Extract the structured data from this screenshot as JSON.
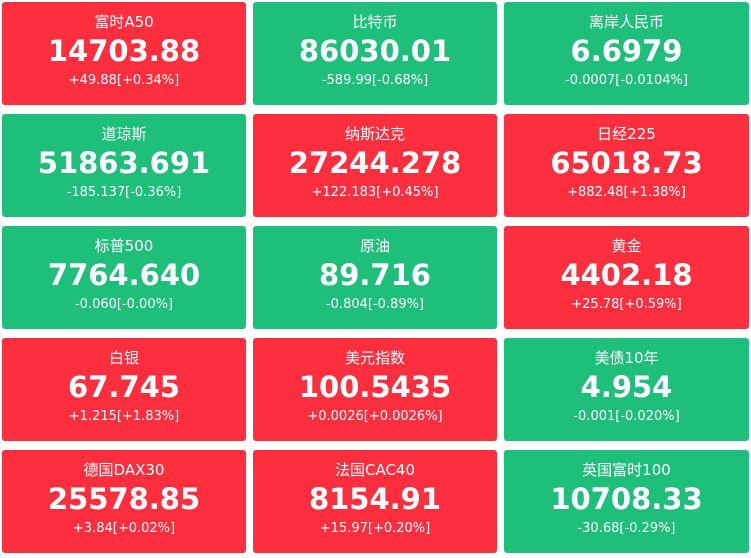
{
  "tiles": [
    {
      "name": "富时A50",
      "price": "14703.88",
      "change": "+49.88[+0.34%]",
      "color": "#fd2f3f"
    },
    {
      "name": "比特币",
      "price": "86030.01",
      "change": "-589.99[-0.68%]",
      "color": "#1ebf7b"
    },
    {
      "name": "离岸人民币",
      "price": "6.6979",
      "change": "-0.0007[-0.0104%]",
      "color": "#1ebf7b"
    },
    {
      "name": "道琼斯",
      "price": "51863.691",
      "change": "-185.137[-0.36%]",
      "color": "#1ebf7b"
    },
    {
      "name": "纳斯达克",
      "price": "27244.278",
      "change": "+122.183[+0.45%]",
      "color": "#fd2f3f"
    },
    {
      "name": "日经225",
      "price": "65018.73",
      "change": "+882.48[+1.38%]",
      "color": "#fd2f3f"
    },
    {
      "name": "标普500",
      "price": "7764.640",
      "change": "-0.060[-0.00%]",
      "color": "#1ebf7b"
    },
    {
      "name": "原油",
      "price": "89.716",
      "change": "-0.804[-0.89%]",
      "color": "#1ebf7b"
    },
    {
      "name": "黄金",
      "price": "4402.18",
      "change": "+25.78[+0.59%]",
      "color": "#fd2f3f"
    },
    {
      "name": "白银",
      "price": "67.745",
      "change": "+1.215[+1.83%]",
      "color": "#fd2f3f"
    },
    {
      "name": "美元指数",
      "price": "100.5435",
      "change": "+0.0026[+0.0026%]",
      "color": "#fd2f3f"
    },
    {
      "name": "美债10年",
      "price": "4.954",
      "change": "-0.001[-0.020%]",
      "color": "#1ebf7b"
    },
    {
      "name": "德国DAX30",
      "price": "25578.85",
      "change": "+3.84[+0.02%]",
      "color": "#fd2f3f"
    },
    {
      "name": "法国CAC40",
      "price": "8154.91",
      "change": "+15.97[+0.20%]",
      "color": "#fd2f3f"
    },
    {
      "name": "英国富时100",
      "price": "10708.33",
      "change": "-30.68[-0.29%]",
      "color": "#1ebf7b"
    }
  ]
}
